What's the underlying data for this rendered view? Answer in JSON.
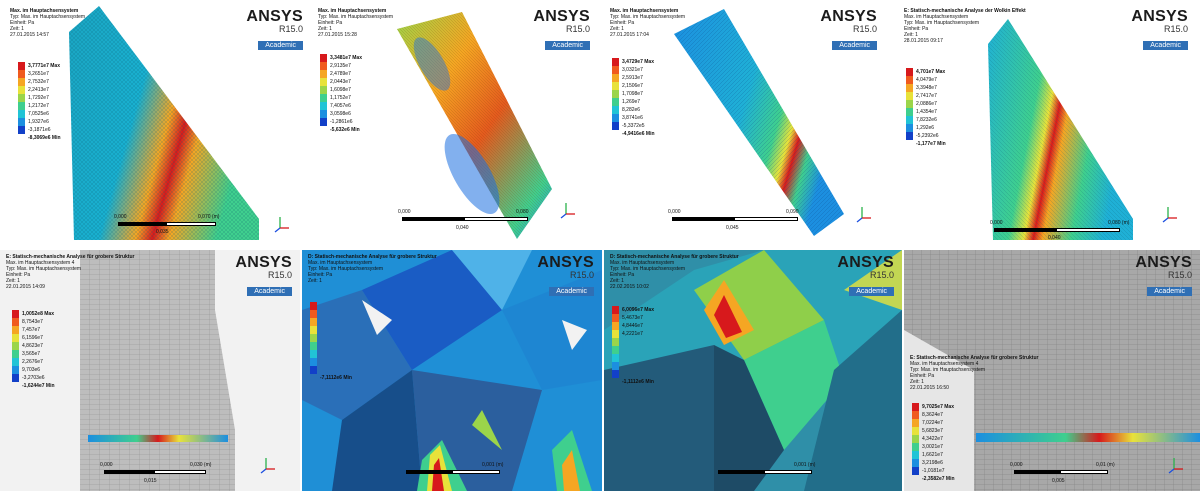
{
  "legend_colors": [
    "#d7191c",
    "#f05a1e",
    "#f5a623",
    "#e8e23a",
    "#9bd54a",
    "#3fcf8e",
    "#21c4d6",
    "#1c8fe0",
    "#1240c8"
  ],
  "panels": [
    {
      "info": [
        "Max. im Hauptachsensystem",
        "Typ: Max. im Hauptachsensystem",
        "Einheit: Pa",
        "Zeit: 1",
        "27.01.2015 14:57"
      ],
      "legend": [
        "3,7771e7 Max",
        "3,2651e7",
        "2,7532e7",
        "2,2413e7",
        "1,7292e7",
        "1,2172e7",
        "7,0525e6",
        "1,9327e6",
        "-3,1871e6",
        "-8,3069e6 Min"
      ],
      "scale": [
        "0,000",
        "0,070 (m)",
        "0,035"
      ],
      "logo": {
        "name": "ANSYS",
        "version": "R15.0",
        "badge": "Academic"
      }
    },
    {
      "info": [
        "Max. im Hauptachsensystem",
        "Typ: Max. im Hauptachsensystem",
        "Einheit: Pa",
        "Zeit: 1",
        "27.01.2015 15:28"
      ],
      "legend": [
        "3,3481e7 Max",
        "2,9135e7",
        "2,4789e7",
        "2,0443e7",
        "1,6098e7",
        "1,1752e7",
        "7,4057e6",
        "3,0598e6",
        "-1,2861e6",
        "-5,632e6 Min"
      ],
      "scale": [
        "0,000",
        "0,080",
        "0,040"
      ],
      "logo": {
        "name": "ANSYS",
        "version": "R15.0",
        "badge": "Academic"
      }
    },
    {
      "info": [
        "Max. im Hauptachsensystem",
        "Typ: Max. im Hauptachsensystem",
        "Einheit: Pa",
        "Zeit: 1",
        "27.01.2015 17:04"
      ],
      "legend": [
        "3,4729e7 Max",
        "3,0321e7",
        "2,5913e7",
        "2,1506e7",
        "1,7098e7",
        "1,269e7",
        "8,282e6",
        "3,8741e6",
        "-5,3372e5",
        "-4,9416e6 Min"
      ],
      "scale": [
        "0,000",
        "0,090",
        "0,045"
      ],
      "logo": {
        "name": "ANSYS",
        "version": "R15.0",
        "badge": "Academic"
      }
    },
    {
      "info": [
        "E: Statisch-mechanische Analyse der Wolkin Effekt",
        "Max. im Hauptachsensystem",
        "Typ: Max. im Hauptachsensystem",
        "Einheit: Pa",
        "Zeit: 1",
        "28.01.2015 09:17"
      ],
      "legend": [
        "4,701e7 Max",
        "4,0479e7",
        "3,3948e7",
        "2,7417e7",
        "2,0886e7",
        "1,4354e7",
        "7,8232e6",
        "1,292e6",
        "-5,2392e6",
        "-1,177e7 Min"
      ],
      "scale": [
        "0,000",
        "0,080 (m)",
        "0,040"
      ],
      "logo": {
        "name": "ANSYS",
        "version": "R15.0",
        "badge": "Academic"
      }
    },
    {
      "info": [
        "E: Statisch-mechanische Analyse für grobere Struktur",
        "Max. im Hauptachsensystem 4",
        "Typ: Max. im Hauptachsensystem",
        "Einheit: Pa",
        "Zeit: 1",
        "22.01.2015 14:09"
      ],
      "legend": [
        "1,0052e8 Max",
        "8,7543e7",
        "7,457e7",
        "6,1596e7",
        "4,8623e7",
        "3,565e7",
        "2,2676e7",
        "9,703e6",
        "-3,2703e6",
        "-1,6244e7 Min"
      ],
      "scale": [
        "0,000",
        "0,030 (m)",
        "0,015"
      ],
      "logo": {
        "name": "ANSYS",
        "version": "R15.0",
        "badge": "Academic"
      }
    },
    {
      "info": [
        "D: Statisch-mechanische Analyse für grobere Struktur",
        "Max. im Hauptachsensystem",
        "Typ: Max. im Hauptachsensystem",
        "Einheit: Pa",
        "Zeit: 1"
      ],
      "legend": [
        "",
        "",
        "",
        "",
        "",
        "",
        "",
        "",
        "",
        "-7,1112e6 Min"
      ],
      "scale": [
        "",
        "0,001 (m)",
        ""
      ],
      "logo": {
        "name": "ANSYS",
        "version": "R15.0",
        "badge": "Academic"
      }
    },
    {
      "info": [
        "D: Statisch-mechanische Analyse für grobere Struktur",
        "Max. im Hauptachsensystem",
        "Typ: Max. im Hauptachsensystem",
        "Einheit: Pa",
        "Zeit: 1",
        "22.02.2015 10:02"
      ],
      "legend": [
        "6,0096e7 Max",
        "5,4673e7",
        "4,8446e7",
        "4,2221e7",
        "",
        "",
        "",
        "",
        "",
        "-1,1112e6 Min"
      ],
      "scale": [
        "",
        "0,001 (m)",
        ""
      ],
      "logo": {
        "name": "ANSYS",
        "version": "R15.0",
        "badge": "Academic"
      }
    },
    {
      "info": [
        "E: Statisch-mechanische Analyse für grobere Struktur",
        "Max. im Hauptachsensystem 4",
        "Typ: Max. im Hauptachsensystem",
        "Einheit: Pa",
        "Zeit: 1",
        "22.01.2015 16:50"
      ],
      "legend": [
        "9,7025e7 Max",
        "8,3624e7",
        "7,0224e7",
        "5,6823e7",
        "4,3422e7",
        "3,0021e7",
        "1,6621e7",
        "3,2198e6",
        "-1,0181e7",
        "-2,3582e7 Min"
      ],
      "scale": [
        "0,000",
        "0,01 (m)",
        "0,005"
      ],
      "logo": {
        "name": "ANSYS",
        "version": "R15.0",
        "badge": "Academic"
      }
    }
  ]
}
